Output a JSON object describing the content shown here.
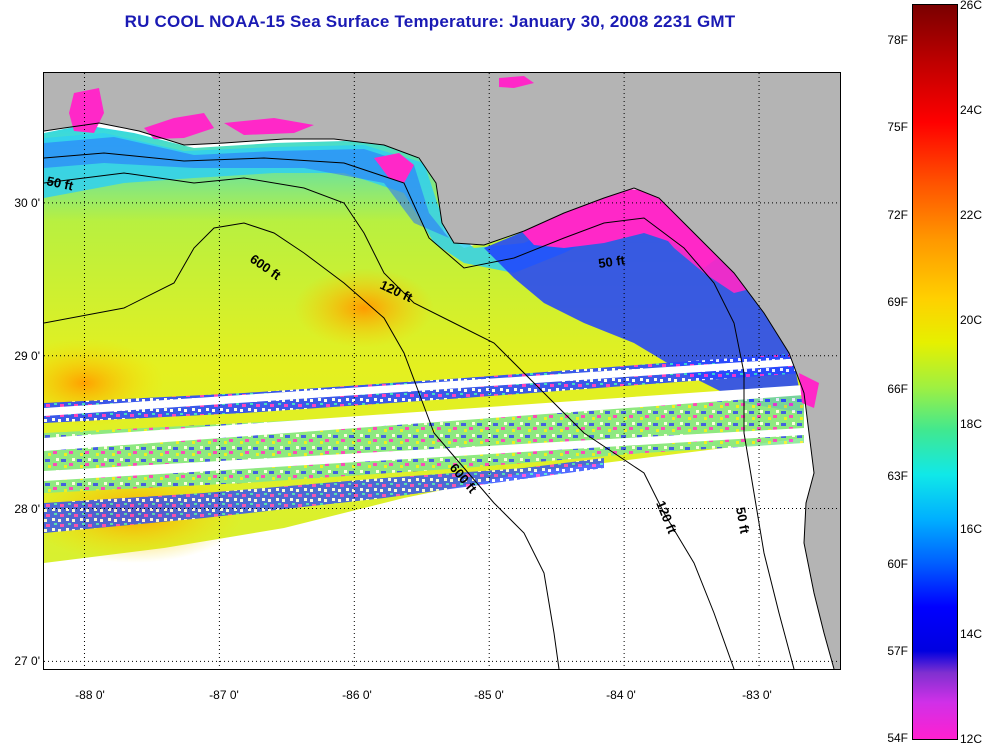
{
  "title": "RU COOL  NOAA-15  Sea Surface Temperature:  January 30, 2008 2231 GMT",
  "map": {
    "lon_range": [
      -88.3,
      -82.4
    ],
    "lat_range": [
      26.95,
      30.85
    ],
    "lat_ticks": [
      {
        "value": 30,
        "label": "30 0'"
      },
      {
        "value": 29,
        "label": "29 0'"
      },
      {
        "value": 28,
        "label": "28 0'"
      },
      {
        "value": 27,
        "label": "27 0'"
      }
    ],
    "lon_ticks": [
      {
        "value": -88,
        "label": "-88 0'"
      },
      {
        "value": -87,
        "label": "-87 0'"
      },
      {
        "value": -86,
        "label": "-86 0'"
      },
      {
        "value": -85,
        "label": "-85 0'"
      },
      {
        "value": -84,
        "label": "-84 0'"
      },
      {
        "value": -83,
        "label": "-83 0'"
      }
    ],
    "contour_labels": [
      {
        "text": "50 ft"
      },
      {
        "text": "600 ft"
      },
      {
        "text": "120 ft"
      },
      {
        "text": "50 ft"
      },
      {
        "text": "600 ft"
      },
      {
        "text": "120 ft"
      },
      {
        "text": "50 ft"
      }
    ],
    "colors": {
      "land": "#b4b4b4",
      "no_data": "#ffffff",
      "warm": "#ffb000",
      "mid": "#e8f000",
      "cool": "#30e0e0",
      "cold": "#2040ff",
      "coldest": "#ff20c8"
    }
  },
  "colorbar": {
    "fahrenheit": [
      "78F",
      "75F",
      "72F",
      "69F",
      "66F",
      "63F",
      "60F",
      "57F",
      "54F"
    ],
    "celsius": [
      "26C",
      "24C",
      "22C",
      "20C",
      "18C",
      "16C",
      "14C",
      "12C"
    ]
  }
}
